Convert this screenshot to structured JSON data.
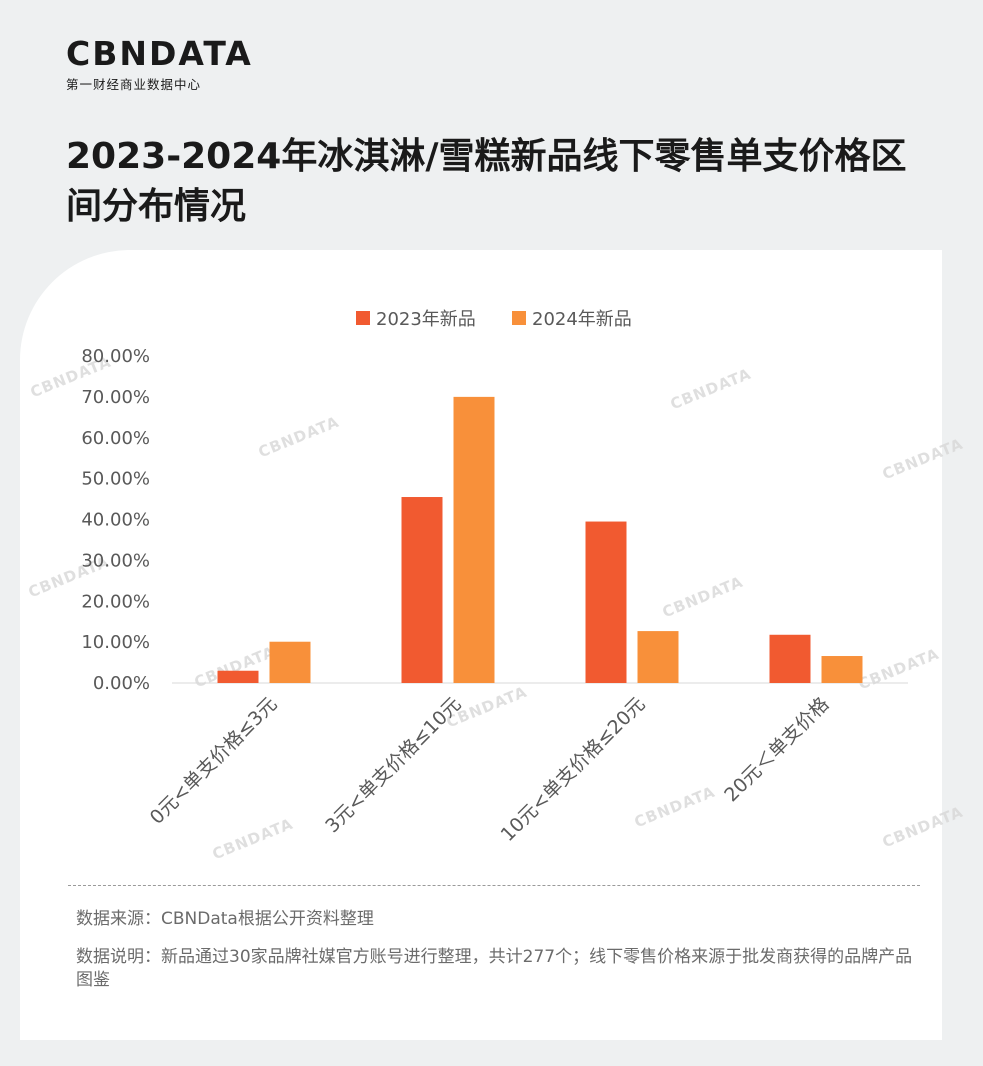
{
  "brand": {
    "logo_text": "CBNDATA",
    "logo_subtitle": "第一财经商业数据中心"
  },
  "title": "2023-2024年冰淇淋/雪糕新品线下零售单支价格区间分布情况",
  "watermark": "CBNDATA",
  "colors": {
    "series_2023": "#f15a30",
    "series_2024": "#f8903a",
    "axis_text": "#595959",
    "baseline": "#d9d9d9"
  },
  "chart_data": {
    "type": "bar",
    "categories": [
      "0元<单支价格≤3元",
      "3元<单支价格≤10元",
      "10元<单支价格≤20元",
      "20元＜单支价格"
    ],
    "series": [
      {
        "name": "2023年新品",
        "values": [
          3.0,
          45.5,
          39.5,
          11.8
        ]
      },
      {
        "name": "2024年新品",
        "values": [
          10.1,
          70.0,
          12.7,
          6.6
        ]
      }
    ],
    "yticks": [
      "0.00%",
      "10.00%",
      "20.00%",
      "30.00%",
      "40.00%",
      "50.00%",
      "60.00%",
      "70.00%",
      "80.00%"
    ],
    "ylim": [
      0,
      80
    ],
    "legend_position": "top",
    "grid": false
  },
  "notes": {
    "source": "数据来源：CBNData根据公开资料整理",
    "explanation": "数据说明：新品通过30家品牌社媒官方账号进行整理，共计277个；线下零售价格来源于批发商获得的品牌产品图鉴"
  }
}
